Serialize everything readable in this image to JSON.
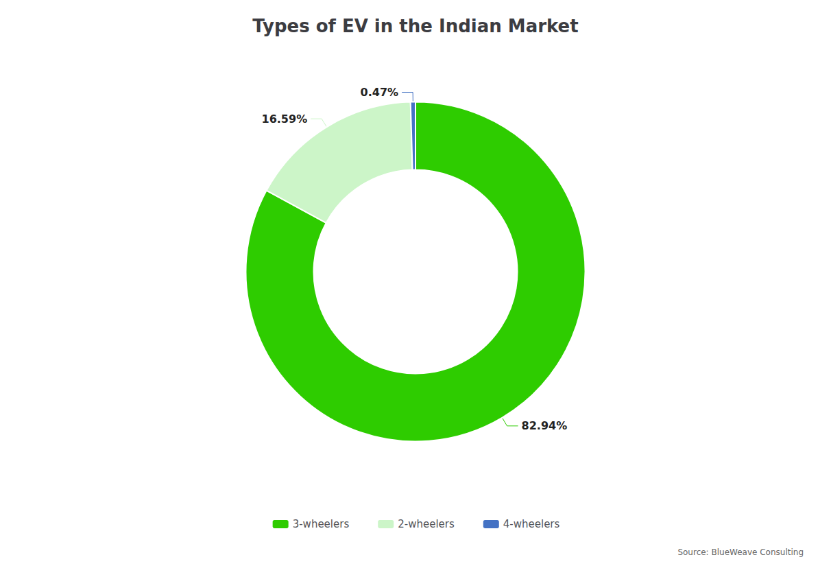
{
  "chart_data": {
    "type": "pie",
    "title": "Types of EV in the Indian Market",
    "categories": [
      "3-wheelers",
      "2-wheelers",
      "4-wheelers"
    ],
    "values": [
      82.94,
      16.59,
      0.47
    ],
    "value_labels": [
      "82.94%",
      "16.59%",
      "0.47%"
    ],
    "colors": [
      "#2ecc00",
      "#ccf5c8",
      "#4472c4"
    ],
    "data_labels": true,
    "legend": "bottom",
    "annotations": [
      "Source: BlueWeave Consulting"
    ]
  }
}
